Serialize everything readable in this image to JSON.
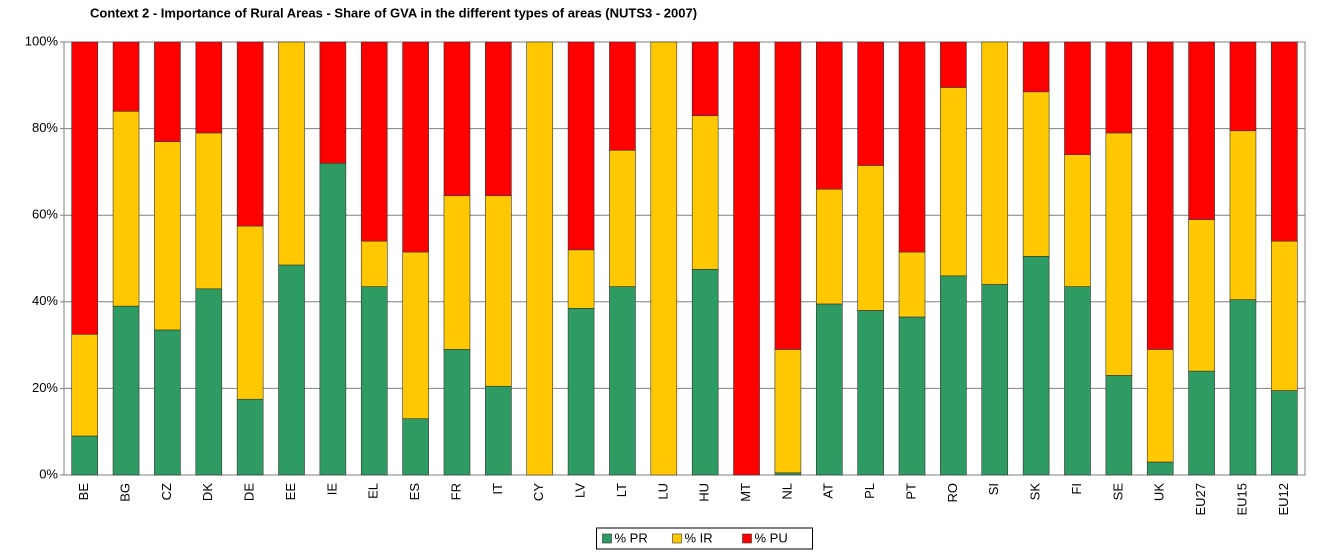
{
  "chart_data": {
    "type": "bar",
    "stacked": true,
    "title": "Context 2 - Importance of Rural Areas - Share of GVA in the different types of areas   (NUTS3 - 2007)",
    "categories": [
      "BE",
      "BG",
      "CZ",
      "DK",
      "DE",
      "EE",
      "IE",
      "EL",
      "ES",
      "FR",
      "IT",
      "CY",
      "LV",
      "LT",
      "LU",
      "HU",
      "MT",
      "NL",
      "AT",
      "PL",
      "PT",
      "RO",
      "SI",
      "SK",
      "FI",
      "SE",
      "UK",
      "EU27",
      "EU15",
      "EU12"
    ],
    "series": [
      {
        "name": "% PR",
        "color": "#2e9b62",
        "values": [
          9,
          39,
          33.5,
          43,
          17.5,
          48.5,
          72,
          43.5,
          13,
          29,
          20.5,
          0,
          38.5,
          43.5,
          0,
          47.5,
          0,
          0.5,
          39.5,
          38,
          36.5,
          46,
          44,
          50.5,
          43.5,
          23,
          3,
          24,
          40.5,
          19.5
        ]
      },
      {
        "name": "% IR",
        "color": "#ffc800",
        "values": [
          23.5,
          45,
          43.5,
          36,
          40,
          51.5,
          0,
          10.5,
          38.5,
          35.5,
          44,
          100,
          13.5,
          31.5,
          100,
          35.5,
          0,
          28.5,
          26.5,
          33.5,
          15,
          43.5,
          56,
          38,
          30.5,
          56,
          26,
          35,
          39,
          34.5
        ]
      },
      {
        "name": "% PU",
        "color": "#ff0000",
        "values": [
          67.5,
          16,
          23,
          21,
          42.5,
          0,
          28,
          46,
          48.5,
          35.5,
          35.5,
          0,
          48,
          25,
          0,
          17,
          100,
          71,
          34,
          28.5,
          48.5,
          10.5,
          0,
          11.5,
          26,
          21,
          71,
          41,
          20.5,
          46
        ]
      }
    ],
    "ylim": [
      0,
      100
    ],
    "yticks": [
      {
        "value": 0,
        "label": "0%"
      },
      {
        "value": 20,
        "label": "20%"
      },
      {
        "value": 40,
        "label": "40%"
      },
      {
        "value": 60,
        "label": "60%"
      },
      {
        "value": 80,
        "label": "80%"
      },
      {
        "value": 100,
        "label": "100%"
      }
    ],
    "grid": true,
    "legend": "bottom"
  }
}
